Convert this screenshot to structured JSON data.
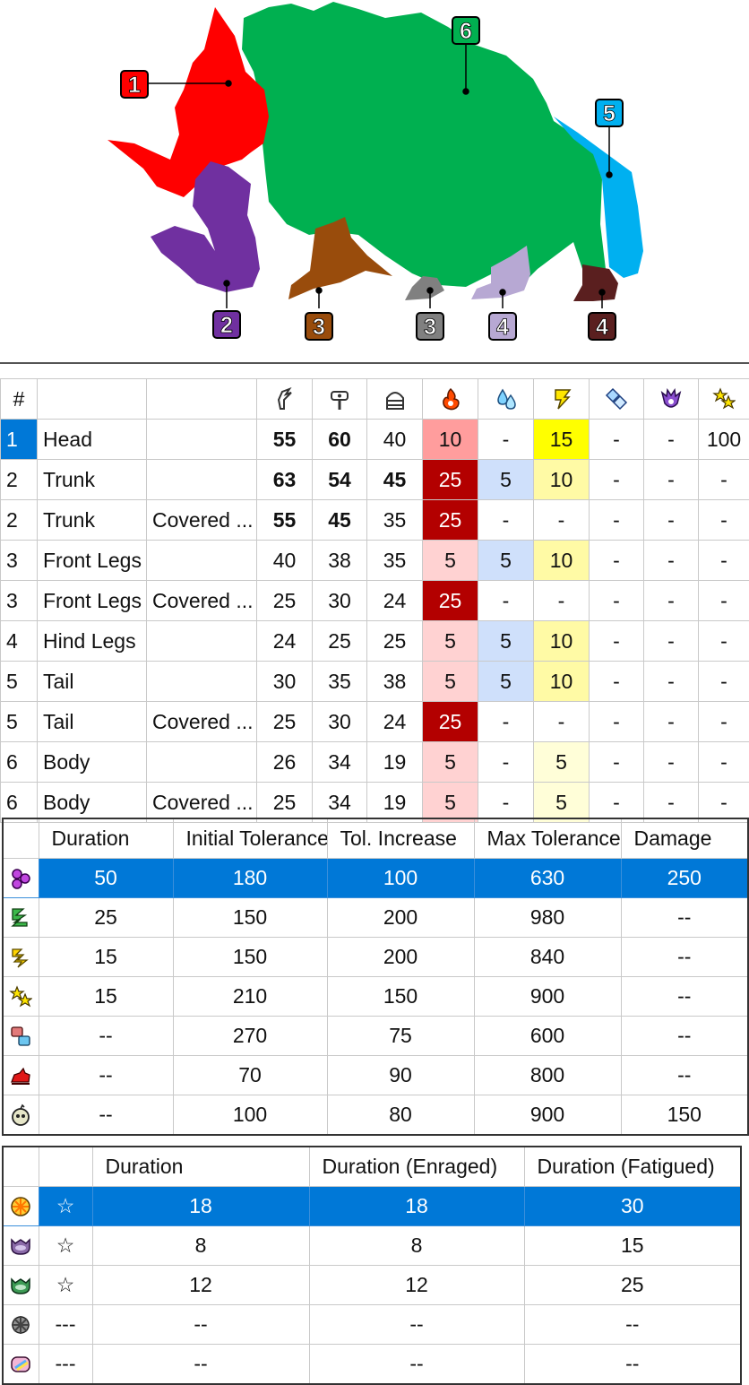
{
  "part_map": {
    "labels": [
      {
        "text": "1",
        "color": "#ff0000",
        "text_color": "#ffffff"
      },
      {
        "text": "6",
        "color": "#00b050",
        "text_color": "#ffffff"
      },
      {
        "text": "5",
        "color": "#00b0f0",
        "text_color": "#ffffff"
      },
      {
        "text": "2",
        "color": "#7030a0",
        "text_color": "#ffffff"
      },
      {
        "text": "3",
        "color": "#994c0c",
        "text_color": "#ffffff"
      },
      {
        "text": "3",
        "color": "#808080",
        "text_color": "#ffffff"
      },
      {
        "text": "4",
        "color": "#b7a8d3",
        "text_color": "#ffffff"
      },
      {
        "text": "4",
        "color": "#5a1f1f",
        "text_color": "#ffffff"
      }
    ]
  },
  "hitzones": {
    "header_hash": "#",
    "column_icons": [
      "cut-icon",
      "impact-icon",
      "shot-icon",
      "fire-icon",
      "water-icon",
      "thunder-icon",
      "ice-icon",
      "dragon-icon",
      "stun-icon"
    ],
    "rows": [
      {
        "num": "1",
        "part": "Head",
        "state": "",
        "vals": [
          "55",
          "60",
          "40",
          "10",
          "-",
          "15",
          "-",
          "-",
          "100"
        ],
        "bold": [
          true,
          true,
          false
        ],
        "sel": true,
        "cls": [
          "",
          "",
          "",
          "c-fire-mid",
          "",
          "c-thunder-hi",
          "",
          "",
          ""
        ]
      },
      {
        "num": "2",
        "part": "Trunk",
        "state": "",
        "vals": [
          "63",
          "54",
          "45",
          "25",
          "5",
          "10",
          "-",
          "-",
          "-"
        ],
        "bold": [
          true,
          true,
          true
        ],
        "sel": false,
        "cls": [
          "",
          "",
          "",
          "c-fire-hi",
          "c-water",
          "c-thunder",
          "",
          "",
          ""
        ]
      },
      {
        "num": "2",
        "part": "Trunk",
        "state": "Covered ...",
        "vals": [
          "55",
          "45",
          "35",
          "25",
          "-",
          "-",
          "-",
          "-",
          "-"
        ],
        "bold": [
          true,
          true,
          false
        ],
        "sel": false,
        "cls": [
          "",
          "",
          "",
          "c-fire-hi",
          "",
          "",
          "",
          "",
          ""
        ]
      },
      {
        "num": "3",
        "part": "Front Legs",
        "state": "",
        "vals": [
          "40",
          "38",
          "35",
          "5",
          "5",
          "10",
          "-",
          "-",
          "-"
        ],
        "bold": [
          false,
          false,
          false
        ],
        "sel": false,
        "cls": [
          "",
          "",
          "",
          "c-fire-lo",
          "c-water",
          "c-thunder",
          "",
          "",
          ""
        ]
      },
      {
        "num": "3",
        "part": "Front Legs",
        "state": "Covered ...",
        "vals": [
          "25",
          "30",
          "24",
          "25",
          "-",
          "-",
          "-",
          "-",
          "-"
        ],
        "bold": [
          false,
          false,
          false
        ],
        "sel": false,
        "cls": [
          "",
          "",
          "",
          "c-fire-hi",
          "",
          "",
          "",
          "",
          ""
        ]
      },
      {
        "num": "4",
        "part": "Hind Legs",
        "state": "",
        "vals": [
          "24",
          "25",
          "25",
          "5",
          "5",
          "10",
          "-",
          "-",
          "-"
        ],
        "bold": [
          false,
          false,
          false
        ],
        "sel": false,
        "cls": [
          "",
          "",
          "",
          "c-fire-lo",
          "c-water",
          "c-thunder",
          "",
          "",
          ""
        ]
      },
      {
        "num": "5",
        "part": "Tail",
        "state": "",
        "vals": [
          "30",
          "35",
          "38",
          "5",
          "5",
          "10",
          "-",
          "-",
          "-"
        ],
        "bold": [
          false,
          false,
          false
        ],
        "sel": false,
        "cls": [
          "",
          "",
          "",
          "c-fire-lo",
          "c-water",
          "c-thunder",
          "",
          "",
          ""
        ]
      },
      {
        "num": "5",
        "part": "Tail",
        "state": "Covered ...",
        "vals": [
          "25",
          "30",
          "24",
          "25",
          "-",
          "-",
          "-",
          "-",
          "-"
        ],
        "bold": [
          false,
          false,
          false
        ],
        "sel": false,
        "cls": [
          "",
          "",
          "",
          "c-fire-hi",
          "",
          "",
          "",
          "",
          ""
        ]
      },
      {
        "num": "6",
        "part": "Body",
        "state": "",
        "vals": [
          "26",
          "34",
          "19",
          "5",
          "-",
          "5",
          "-",
          "-",
          "-"
        ],
        "bold": [
          false,
          false,
          false
        ],
        "sel": false,
        "cls": [
          "",
          "",
          "",
          "c-fire-lo",
          "",
          "c-thunder-lo",
          "",
          "",
          ""
        ]
      },
      {
        "num": "6",
        "part": "Body",
        "state": "Covered ...",
        "vals": [
          "25",
          "34",
          "19",
          "5",
          "-",
          "5",
          "-",
          "-",
          "-"
        ],
        "bold": [
          false,
          false,
          false
        ],
        "sel": false,
        "cls": [
          "",
          "",
          "",
          "c-fire-lo",
          "",
          "c-thunder-lo",
          "",
          "",
          ""
        ]
      }
    ]
  },
  "status": {
    "headers": [
      "Duration",
      "Initial Tolerance",
      "Tol. Increase",
      "Max Tolerance",
      "Damage"
    ],
    "rows": [
      {
        "icon": "poison-icon",
        "vals": [
          "50",
          "180",
          "100",
          "630",
          "250"
        ],
        "selected": true
      },
      {
        "icon": "sleep-icon",
        "vals": [
          "25",
          "150",
          "200",
          "980",
          "--"
        ],
        "selected": false
      },
      {
        "icon": "paralysis-icon",
        "vals": [
          "15",
          "150",
          "200",
          "840",
          "--"
        ],
        "selected": false
      },
      {
        "icon": "stun-icon",
        "vals": [
          "15",
          "210",
          "150",
          "900",
          "--"
        ],
        "selected": false
      },
      {
        "icon": "exhaust-icon",
        "vals": [
          "--",
          "270",
          "75",
          "600",
          "--"
        ],
        "selected": false
      },
      {
        "icon": "mount-icon",
        "vals": [
          "--",
          "70",
          "90",
          "800",
          "--"
        ],
        "selected": false
      },
      {
        "icon": "blast-icon",
        "vals": [
          "--",
          "100",
          "80",
          "900",
          "150"
        ],
        "selected": false
      }
    ]
  },
  "items": {
    "headers": [
      "Duration",
      "Duration (Enraged)",
      "Duration (Fatigued)"
    ],
    "rows": [
      {
        "icon": "flash-bomb-icon",
        "mark": "☆",
        "vals": [
          "18",
          "18",
          "30"
        ],
        "selected": true
      },
      {
        "icon": "pitfall-trap-icon",
        "mark": "☆",
        "vals": [
          "8",
          "8",
          "15"
        ],
        "selected": false
      },
      {
        "icon": "shock-trap-icon",
        "mark": "☆",
        "vals": [
          "12",
          "12",
          "25"
        ],
        "selected": false
      },
      {
        "icon": "sonic-bomb-icon",
        "mark": "---",
        "vals": [
          "--",
          "--",
          "--"
        ],
        "selected": false
      },
      {
        "icon": "dung-bomb-icon",
        "mark": "---",
        "vals": [
          "--",
          "--",
          "--"
        ],
        "selected": false
      }
    ]
  }
}
